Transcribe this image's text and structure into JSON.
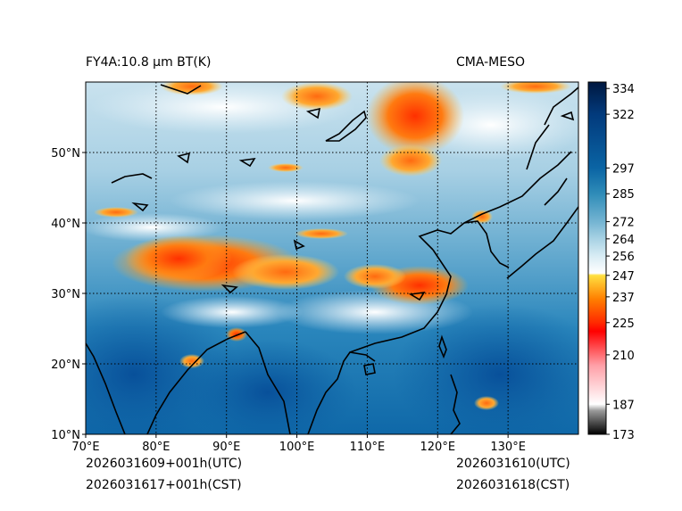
{
  "header": {
    "left_title": "FY4A:10.8 µm BT(K)",
    "right_title": "CMA-MESO"
  },
  "footer": {
    "init_utc": "2026031609+001h(UTC)",
    "init_cst": "2026031617+001h(CST)",
    "valid_utc": "2026031610(UTC)",
    "valid_cst": "2026031618(CST)"
  },
  "map": {
    "lon_range": [
      70,
      140
    ],
    "lat_range": [
      10,
      60
    ],
    "lon_ticks": [
      {
        "value": 70,
        "label": "70°E"
      },
      {
        "value": 80,
        "label": "80°E"
      },
      {
        "value": 90,
        "label": "90°E"
      },
      {
        "value": 100,
        "label": "100°E"
      },
      {
        "value": 110,
        "label": "110°E"
      },
      {
        "value": 120,
        "label": "120°E"
      },
      {
        "value": 130,
        "label": "130°E"
      }
    ],
    "lat_ticks": [
      {
        "value": 10,
        "label": "10°N"
      },
      {
        "value": 20,
        "label": "20°N"
      },
      {
        "value": 30,
        "label": "30°N"
      },
      {
        "value": 40,
        "label": "40°N"
      },
      {
        "value": 50,
        "label": "50°N"
      }
    ],
    "gridlines": "dotted"
  },
  "colorbar": {
    "min": 173,
    "max": 337,
    "ticks": [
      {
        "value": 334,
        "label": "334"
      },
      {
        "value": 322,
        "label": "322"
      },
      {
        "value": 297,
        "label": "297"
      },
      {
        "value": 285,
        "label": "285"
      },
      {
        "value": 272,
        "label": "272"
      },
      {
        "value": 264,
        "label": "264"
      },
      {
        "value": 256,
        "label": "256"
      },
      {
        "value": 247,
        "label": "247"
      },
      {
        "value": 237,
        "label": "237"
      },
      {
        "value": 225,
        "label": "225"
      },
      {
        "value": 210,
        "label": "210"
      },
      {
        "value": 187,
        "label": "187"
      },
      {
        "value": 173,
        "label": "173"
      }
    ],
    "stops": [
      {
        "value": 173,
        "color": "#000000"
      },
      {
        "value": 184,
        "color": "#9a9a9a"
      },
      {
        "value": 187,
        "color": "#ffffff"
      },
      {
        "value": 205,
        "color": "#ffa0a8"
      },
      {
        "value": 221,
        "color": "#ff0000"
      },
      {
        "value": 225,
        "color": "#ff2a00"
      },
      {
        "value": 236,
        "color": "#ff7f00"
      },
      {
        "value": 247,
        "color": "#ffe040"
      },
      {
        "value": 248,
        "color": "#ffffff"
      },
      {
        "value": 256,
        "color": "#d8ecf4"
      },
      {
        "value": 264,
        "color": "#a8d2e4"
      },
      {
        "value": 272,
        "color": "#74b4d2"
      },
      {
        "value": 285,
        "color": "#2f8cb8"
      },
      {
        "value": 297,
        "color": "#0a64a4"
      },
      {
        "value": 322,
        "color": "#023a7c"
      },
      {
        "value": 337,
        "color": "#001840"
      }
    ]
  }
}
